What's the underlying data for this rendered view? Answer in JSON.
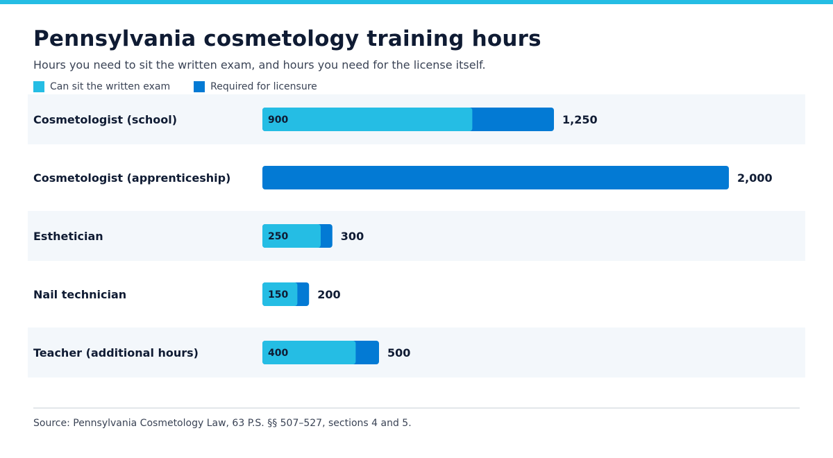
{
  "header": {
    "title": "Pennsylvania cosmetology training hours",
    "subtitle": "Hours you need to sit the written exam, and hours you need for the license itself."
  },
  "colors": {
    "accent": "#25bde4",
    "exam": "#25bde4",
    "licensure": "#037ad4",
    "band": "#f3f7fb",
    "text": "#0f1b33"
  },
  "chart_data": {
    "type": "bar",
    "orientation": "horizontal",
    "categories": [
      "Cosmetologist (school)",
      "Cosmetologist (apprenticeship)",
      "Esthetician",
      "Nail technician",
      "Teacher (additional hours)"
    ],
    "series": [
      {
        "name": "Can sit the written exam",
        "values": [
          900,
          null,
          250,
          150,
          400
        ],
        "labels": [
          "900",
          "",
          "250",
          "150",
          "400"
        ]
      },
      {
        "name": "Required for licensure",
        "values": [
          1250,
          2000,
          300,
          200,
          500
        ],
        "labels": [
          "1,250",
          "2,000",
          "300",
          "200",
          "500"
        ]
      }
    ],
    "legend": "top-left",
    "grid": false,
    "xlim": [
      0,
      2000
    ]
  },
  "footer": {
    "source": "Source: Pennsylvania Cosmetology Law, 63 P.S. §§ 507–527, sections 4 and 5."
  }
}
